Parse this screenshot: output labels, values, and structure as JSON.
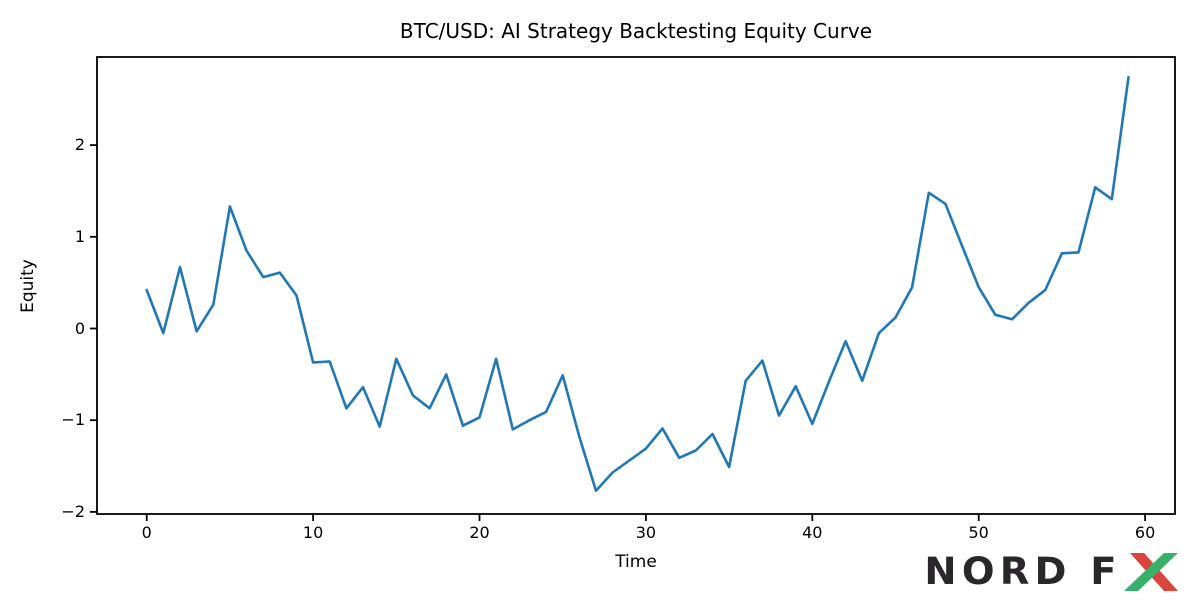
{
  "chart_data": {
    "type": "line",
    "title": "BTC/USD: AI Strategy Backtesting Equity Curve",
    "xlabel": "Time",
    "ylabel": "Equity",
    "grid": false,
    "legend": "none",
    "line_color": "#1f77b4",
    "xlim": [
      -2.95,
      61.95
    ],
    "ylim": [
      -2.02,
      2.96
    ],
    "x_ticks": [
      0,
      10,
      20,
      30,
      40,
      50,
      60
    ],
    "x_tick_labels": [
      "0",
      "10",
      "20",
      "30",
      "40",
      "50",
      "60"
    ],
    "y_ticks": [
      -2,
      -1,
      0,
      1,
      2
    ],
    "y_tick_labels": [
      "−2",
      "−1",
      "0",
      "1",
      "2"
    ],
    "x": [
      0,
      1,
      2,
      3,
      4,
      5,
      6,
      7,
      8,
      9,
      10,
      11,
      12,
      13,
      14,
      15,
      16,
      17,
      18,
      19,
      20,
      21,
      22,
      23,
      24,
      25,
      26,
      27,
      28,
      29,
      30,
      31,
      32,
      33,
      34,
      35,
      36,
      37,
      38,
      39,
      40,
      41,
      42,
      43,
      44,
      45,
      46,
      47,
      48,
      49,
      50,
      51,
      52,
      53,
      54,
      55,
      56,
      57,
      58,
      59
    ],
    "series": [
      {
        "name": "equity",
        "values": [
          0.42,
          -0.05,
          0.67,
          -0.03,
          0.26,
          1.33,
          0.85,
          0.56,
          0.61,
          0.36,
          -0.37,
          -0.36,
          -0.87,
          -0.64,
          -1.07,
          -0.33,
          -0.73,
          -0.87,
          -0.5,
          -1.06,
          -0.97,
          -0.33,
          -1.1,
          -1.0,
          -0.91,
          -0.51,
          -1.18,
          -1.77,
          -1.57,
          -1.44,
          -1.31,
          -1.09,
          -1.41,
          -1.33,
          -1.15,
          -1.51,
          -0.57,
          -0.35,
          -0.95,
          -0.63,
          -1.04,
          -0.58,
          -0.14,
          -0.57,
          -0.05,
          0.12,
          0.45,
          1.48,
          1.36,
          0.9,
          0.45,
          0.15,
          0.1,
          0.28,
          0.42,
          0.82,
          0.83,
          1.54,
          1.41,
          2.74
        ]
      }
    ]
  },
  "logo": {
    "text": "NORD F",
    "x_letter": "X",
    "text_color": "#29272a",
    "x_red": "#d9453a",
    "x_green": "#37b06a"
  },
  "colors": {
    "background": "#ffffff",
    "spine": "#000000",
    "accent_line": "#1f77b4"
  }
}
